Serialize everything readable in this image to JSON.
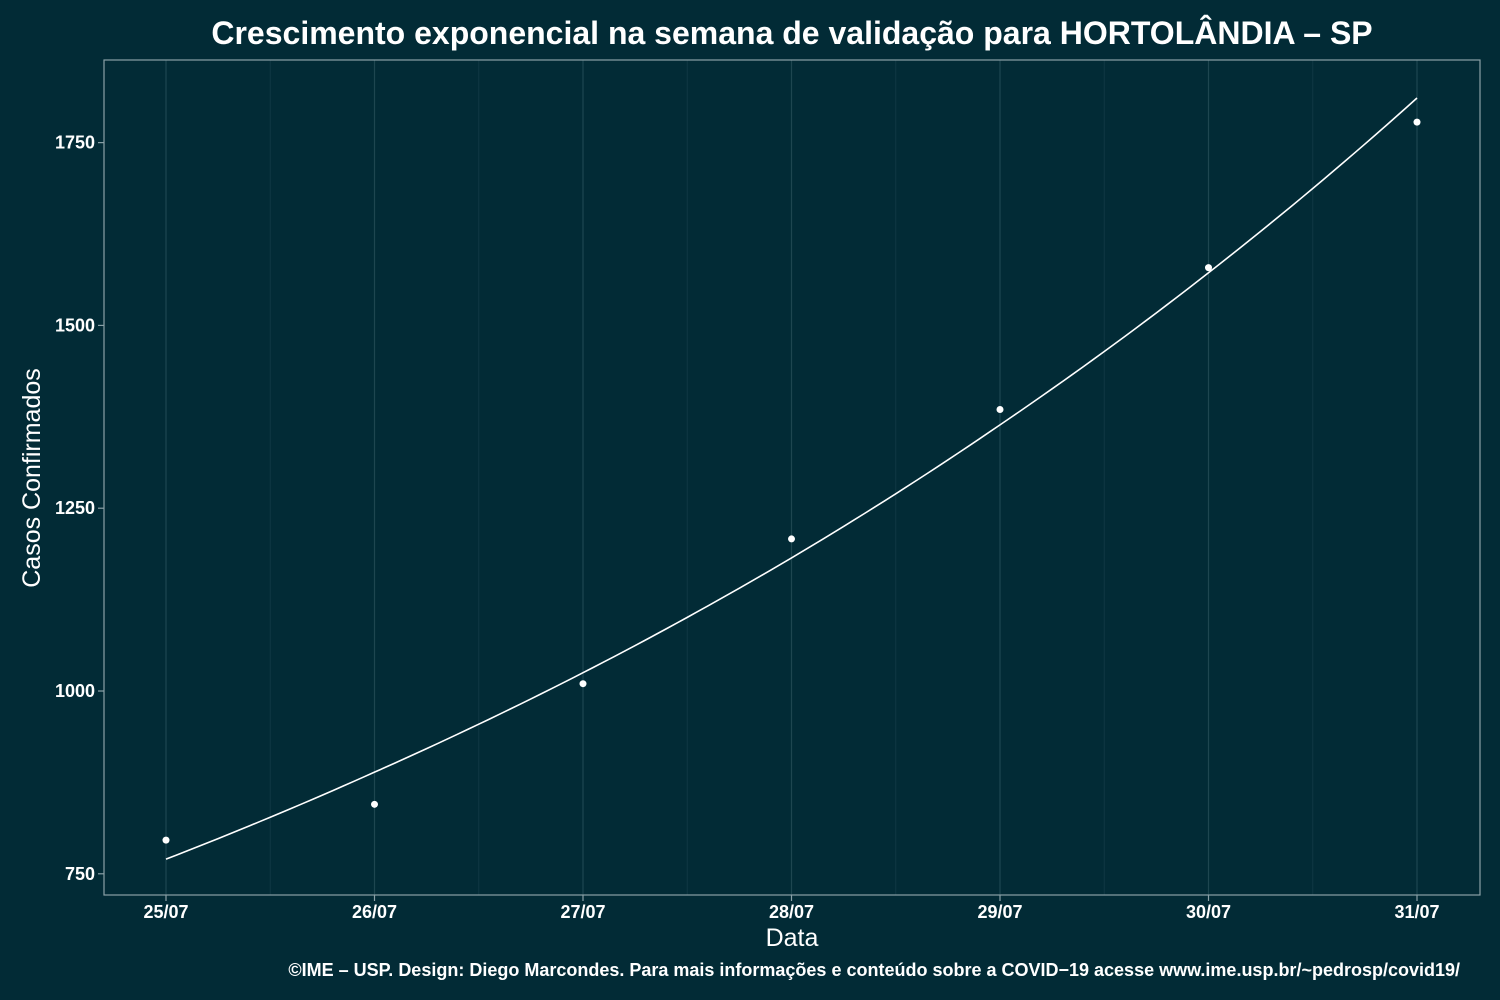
{
  "chart_data": {
    "type": "scatter",
    "title": "Crescimento exponencial na semana de validação para HORTOLÂNDIA – SP",
    "xlabel": "Data",
    "ylabel": "Casos Confirmados",
    "caption": "©IME – USP. Design: Diego Marcondes. Para mais informações e conteúdo sobre a COVID−19 acesse www.ime.usp.br/~pedrosp/covid19/",
    "categories": [
      "25/07",
      "26/07",
      "27/07",
      "28/07",
      "29/07",
      "30/07",
      "31/07"
    ],
    "y_ticks": [
      750,
      1000,
      1250,
      1500,
      1750
    ],
    "ylim": [
      721,
      1863
    ],
    "grid": true,
    "legend": "none",
    "series": [
      {
        "type": "scatter",
        "values": [
          796,
          845,
          1010,
          1208,
          1385,
          1579,
          1778
        ]
      },
      {
        "type": "line",
        "values": [
          770,
          889,
          1025,
          1182,
          1364,
          1572,
          1811
        ]
      }
    ],
    "colors": {
      "background": "#022b36",
      "panel_border": "#8aa0a6",
      "grid_major": "#1e4650",
      "grid_minor": "#0f3843",
      "points": "#ffffff",
      "line": "#ffffff",
      "text": "#ffffff"
    }
  }
}
